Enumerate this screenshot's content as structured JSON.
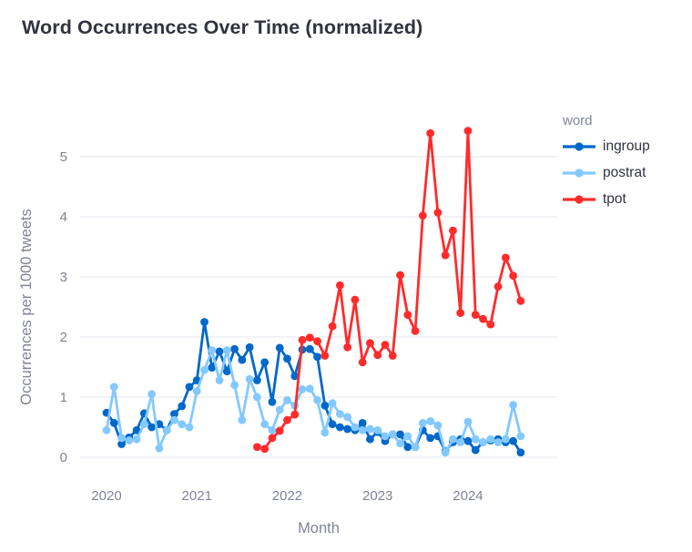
{
  "page": {
    "title": "Word Occurrences Over Time (normalized)"
  },
  "theme": {
    "background": "#ffffff",
    "grid_color": "#e6eaf1",
    "axis_text_color": "#808495",
    "title_color": "#31333f",
    "legend_text_color": "#31333f"
  },
  "chart_data": {
    "type": "line",
    "title": "Word Occurrences Over Time (normalized)",
    "xlabel": "Month",
    "ylabel": "Occurrences per 1000 tweets",
    "legend_title": "word",
    "legend_position": "right",
    "grid": "horizontal-only",
    "x_unit": "month",
    "x_start": "2020-01",
    "x_end": "2024-08",
    "xtick_labels": [
      "2020",
      "2021",
      "2022",
      "2023",
      "2024"
    ],
    "xtick_month_indices": [
      0,
      12,
      24,
      36,
      48
    ],
    "yticks": [
      0,
      1,
      2,
      3,
      4,
      5
    ],
    "ylim": [
      0,
      5.6
    ],
    "series": [
      {
        "name": "ingroup",
        "color": "#0068c9",
        "start_month_index": 0,
        "values": [
          0.74,
          0.57,
          0.22,
          0.33,
          0.45,
          0.73,
          0.5,
          0.55,
          0.45,
          0.72,
          0.85,
          1.17,
          1.28,
          2.25,
          1.49,
          1.76,
          1.43,
          1.8,
          1.62,
          1.83,
          1.28,
          1.58,
          0.92,
          1.82,
          1.64,
          1.35,
          1.79,
          1.8,
          1.67,
          0.86,
          0.55,
          0.5,
          0.47,
          0.45,
          0.57,
          0.3,
          0.42,
          0.27,
          0.38,
          0.38,
          0.17,
          0.17,
          0.45,
          0.32,
          0.35,
          0.1,
          0.25,
          0.3,
          0.27,
          0.12,
          0.25,
          0.28,
          0.3,
          0.25,
          0.27,
          0.08
        ]
      },
      {
        "name": "postrat",
        "color": "#83c9ff",
        "start_month_index": 0,
        "values": [
          0.45,
          1.17,
          0.32,
          0.28,
          0.3,
          0.55,
          1.05,
          0.15,
          0.45,
          0.62,
          0.55,
          0.5,
          1.1,
          1.45,
          1.78,
          1.28,
          1.78,
          1.2,
          0.62,
          1.3,
          1.0,
          0.55,
          0.45,
          0.79,
          0.95,
          0.86,
          1.13,
          1.14,
          0.95,
          0.41,
          0.9,
          0.72,
          0.67,
          0.5,
          0.45,
          0.47,
          0.45,
          0.35,
          0.38,
          0.23,
          0.35,
          0.17,
          0.57,
          0.6,
          0.53,
          0.08,
          0.3,
          0.25,
          0.59,
          0.3,
          0.25,
          0.3,
          0.25,
          0.3,
          0.87,
          0.35
        ]
      },
      {
        "name": "tpot",
        "color": "#ff2b2b",
        "start_month_index": 20,
        "values": [
          0.17,
          0.14,
          0.32,
          0.44,
          0.62,
          0.71,
          1.95,
          1.99,
          1.93,
          1.69,
          2.18,
          2.86,
          1.83,
          2.62,
          1.58,
          1.9,
          1.7,
          1.87,
          1.69,
          3.03,
          2.37,
          2.1,
          4.02,
          5.39,
          4.07,
          3.36,
          3.77,
          2.4,
          5.43,
          2.37,
          2.3,
          2.21,
          2.84,
          3.32,
          3.02,
          2.6
        ]
      }
    ]
  }
}
